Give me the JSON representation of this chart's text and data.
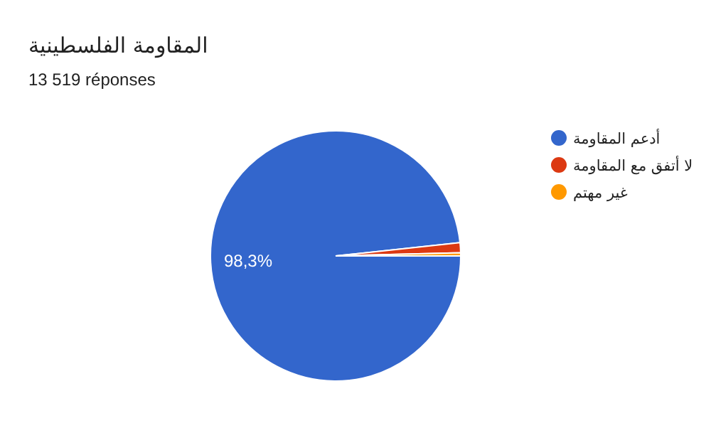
{
  "chart_data": {
    "type": "pie",
    "title": "المقاومة الفلسطينية",
    "subtitle": "13 519 réponses",
    "categories": [
      "أدعم المقاومة",
      "لا أتفق مع المقاومة",
      "غير مهتم"
    ],
    "values": [
      98.3,
      1.3,
      0.4
    ],
    "colors": [
      "#3366cc",
      "#dc3912",
      "#ff9900"
    ],
    "value_labels": [
      "98,3%",
      null,
      null
    ],
    "legend": "right"
  }
}
